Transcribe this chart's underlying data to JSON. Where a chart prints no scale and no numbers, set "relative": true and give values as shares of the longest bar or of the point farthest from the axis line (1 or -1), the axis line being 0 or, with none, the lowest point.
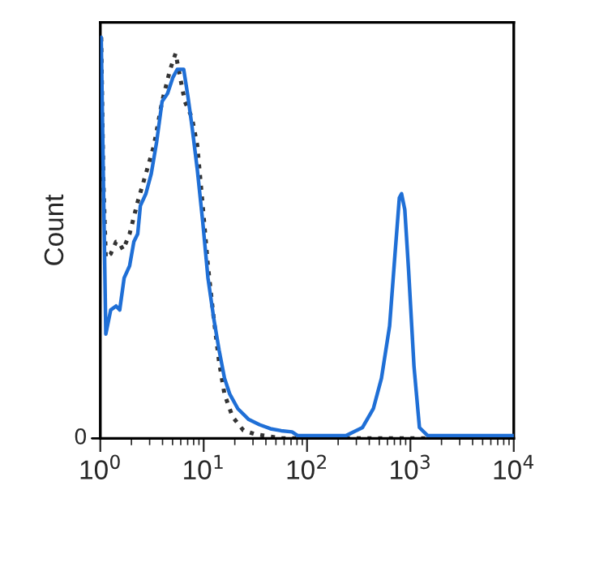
{
  "chart_data": {
    "type": "line",
    "ylabel": "Count",
    "relative": true,
    "log": "x",
    "xlim": [
      1,
      10000
    ],
    "xticks": [
      {
        "value": 1,
        "label": "10$^{0}$"
      },
      {
        "value": 10,
        "label": "10$^{1}$"
      },
      {
        "value": 100,
        "label": "10$^{2}$"
      },
      {
        "value": 1000,
        "label": "10$^{3}$"
      },
      {
        "value": 10000,
        "label": "10$^{4}$"
      }
    ],
    "grid": false,
    "legend": false,
    "annotations": [
      "0"
    ],
    "series": [
      {
        "color": "#1f6fd6",
        "line_style": "solid",
        "x": [
          1.02,
          1.07,
          1.13,
          1.26,
          1.42,
          1.54,
          1.7,
          1.92,
          2.11,
          2.3,
          2.44,
          2.76,
          3.11,
          3.51,
          3.96,
          4.47,
          5.04,
          5.55,
          6.04,
          6.41,
          7.06,
          7.69,
          8.68,
          9.79,
          11.0,
          12.5,
          14.1,
          15.9,
          17.9,
          21.4,
          27.3,
          34.7,
          44.2,
          56.2,
          71.6,
          80.9,
          240,
          344,
          438,
          525,
          629,
          710,
          782,
          821,
          883,
          960,
          1083,
          1223,
          1466,
          9900
        ],
        "values": [
          1.0,
          0.65,
          0.26,
          0.32,
          0.33,
          0.32,
          0.4,
          0.43,
          0.49,
          0.51,
          0.58,
          0.61,
          0.66,
          0.74,
          0.84,
          0.86,
          0.9,
          0.92,
          0.92,
          0.92,
          0.85,
          0.78,
          0.67,
          0.54,
          0.4,
          0.3,
          0.22,
          0.15,
          0.11,
          0.074,
          0.047,
          0.034,
          0.024,
          0.019,
          0.016,
          0.007,
          0.007,
          0.027,
          0.074,
          0.15,
          0.28,
          0.46,
          0.6,
          0.61,
          0.57,
          0.42,
          0.18,
          0.027,
          0.007,
          0.007
        ]
      },
      {
        "color": "#333333",
        "line_style": "dotted",
        "x": [
          1.02,
          1.07,
          1.13,
          1.26,
          1.42,
          1.51,
          1.66,
          1.92,
          2.3,
          2.76,
          3.3,
          3.96,
          4.74,
          5.35,
          5.82,
          6.57,
          7.69,
          8.68,
          9.79,
          11.0,
          12.5,
          14.1,
          15.9,
          19.0,
          24.2,
          30.8,
          56.2,
          9900
        ],
        "values": [
          1.0,
          0.65,
          0.45,
          0.46,
          0.49,
          0.49,
          0.47,
          0.51,
          0.59,
          0.66,
          0.73,
          0.84,
          0.92,
          0.96,
          0.91,
          0.84,
          0.8,
          0.73,
          0.58,
          0.43,
          0.3,
          0.19,
          0.11,
          0.054,
          0.02,
          0.011,
          0.0,
          0.0
        ]
      }
    ]
  }
}
